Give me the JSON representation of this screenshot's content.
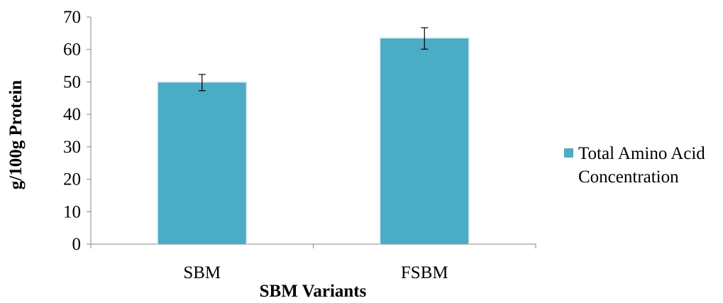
{
  "chart_data": {
    "type": "bar",
    "categories": [
      "SBM",
      "FSBM"
    ],
    "series": [
      {
        "name": "Total Amino Acid Concentration",
        "values": [
          49.8,
          63.4
        ],
        "error": [
          2.5,
          3.3
        ],
        "color": "#4BACC6"
      }
    ],
    "xlabel": "SBM Variants",
    "ylabel": "g/100g Protein",
    "ylim": [
      0,
      70
    ],
    "yticks": [
      0,
      10,
      20,
      30,
      40,
      50,
      60,
      70
    ],
    "grid": false,
    "legend_position": "right"
  }
}
